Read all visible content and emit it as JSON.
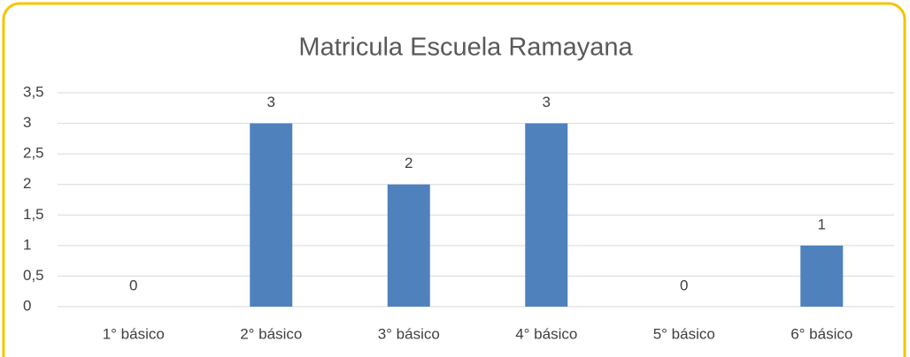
{
  "chart_data": {
    "type": "bar",
    "title": "Matricula Escuela Ramayana",
    "categories": [
      "1° básico",
      "2° básico",
      "3° básico",
      "4° básico",
      "5° básico",
      "6° básico"
    ],
    "values": [
      0,
      3,
      2,
      3,
      0,
      1
    ],
    "color": "#4f81bd",
    "ylim": [
      0,
      3.5
    ],
    "yticks": [
      0,
      {
        "value": 0.5,
        "label": "0,5"
      },
      1,
      {
        "value": 1.5,
        "label": "1,5"
      },
      2,
      {
        "value": 2.5,
        "label": "2,5"
      },
      3,
      {
        "value": 3.5,
        "label": "3,5"
      }
    ],
    "grid": true
  }
}
